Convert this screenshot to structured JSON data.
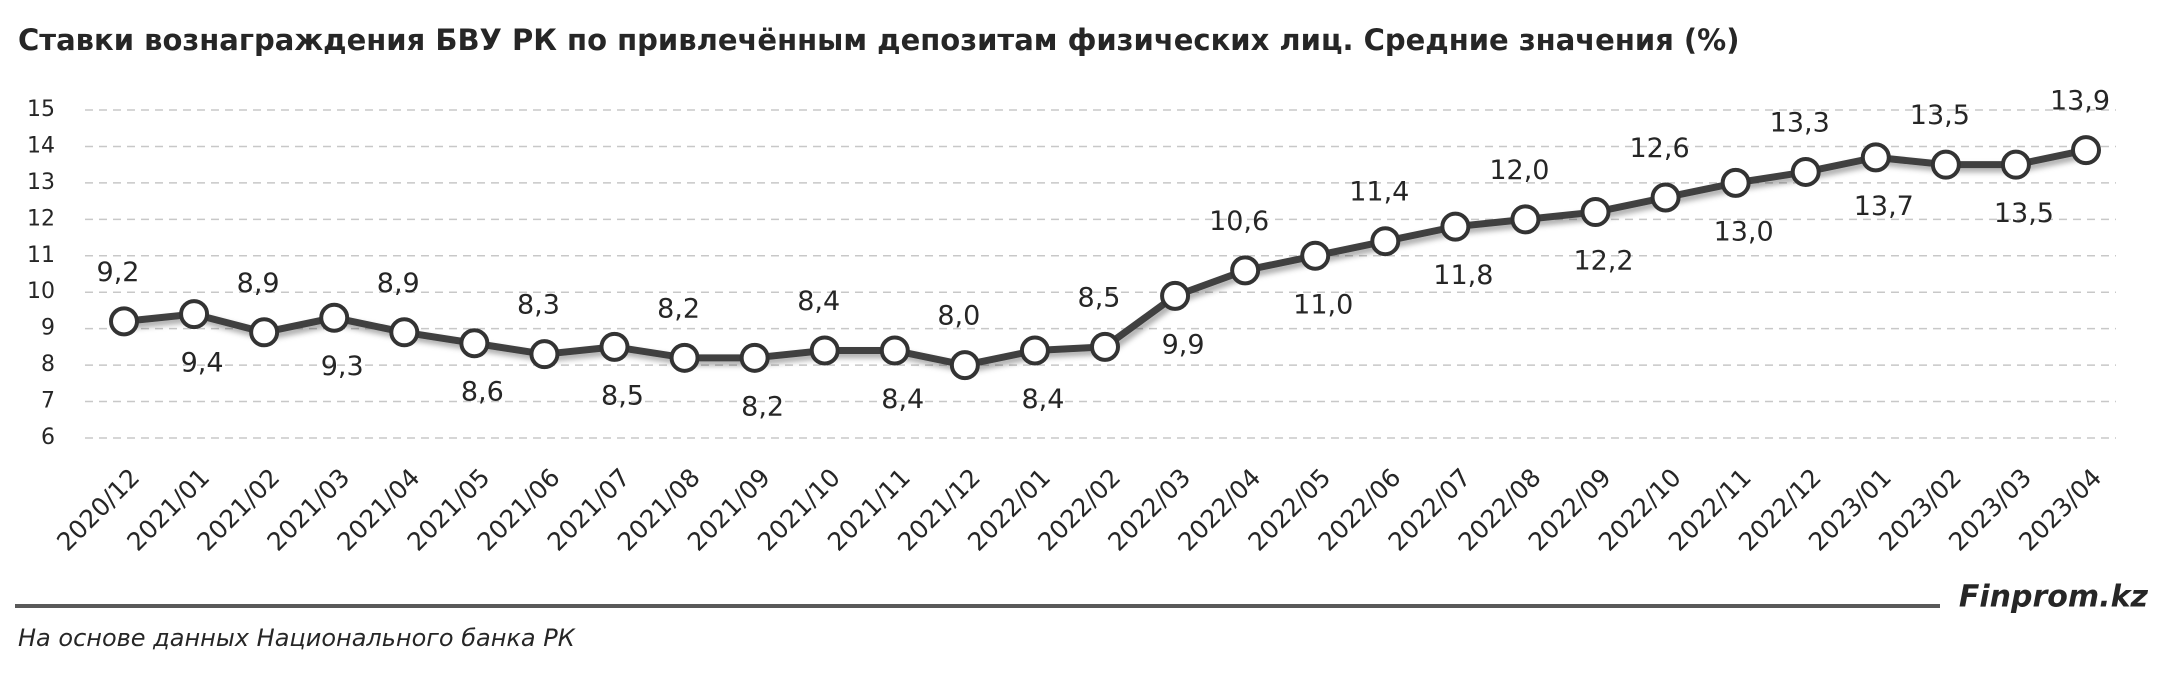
{
  "chart_data": {
    "type": "line",
    "title": "Ставки вознаграждения БВУ РК по привлечённым депозитам физических лиц. Средние значения (%)",
    "categories": [
      "2020/12",
      "2021/01",
      "2021/02",
      "2021/03",
      "2021/04",
      "2021/05",
      "2021/06",
      "2021/07",
      "2021/08",
      "2021/09",
      "2021/10",
      "2021/11",
      "2021/12",
      "2022/01",
      "2022/02",
      "2022/03",
      "2022/04",
      "2022/05",
      "2022/06",
      "2022/07",
      "2022/08",
      "2022/09",
      "2022/10",
      "2022/11",
      "2022/12",
      "2023/01",
      "2023/02",
      "2023/03",
      "2023/04"
    ],
    "values": [
      9.2,
      9.4,
      8.9,
      9.3,
      8.9,
      8.6,
      8.3,
      8.5,
      8.2,
      8.2,
      8.4,
      8.4,
      8.0,
      8.4,
      8.5,
      9.9,
      10.6,
      11.0,
      11.4,
      11.8,
      12.0,
      12.2,
      12.6,
      13.0,
      13.3,
      13.7,
      13.5,
      13.5,
      13.9
    ],
    "value_labels": [
      "9,2",
      "9,4",
      "8,9",
      "9,3",
      "8,9",
      "8,6",
      "8,3",
      "8,5",
      "8,2",
      "8,2",
      "8,4",
      "8,4",
      "8,0",
      "8,4",
      "8,5",
      "9,9",
      "10,6",
      "11,0",
      "11,4",
      "11,8",
      "12,0",
      "12,2",
      "12,6",
      "13,0",
      "13,3",
      "13,7",
      "13,5",
      "13,5",
      "13,9"
    ],
    "color": "#404040",
    "ylim": [
      6,
      15
    ],
    "yticks": [
      6,
      7,
      8,
      9,
      10,
      11,
      12,
      13,
      14,
      15
    ],
    "grid": true,
    "source": "На основе данных Национального банка РК",
    "brand": "Finprom.kz"
  }
}
